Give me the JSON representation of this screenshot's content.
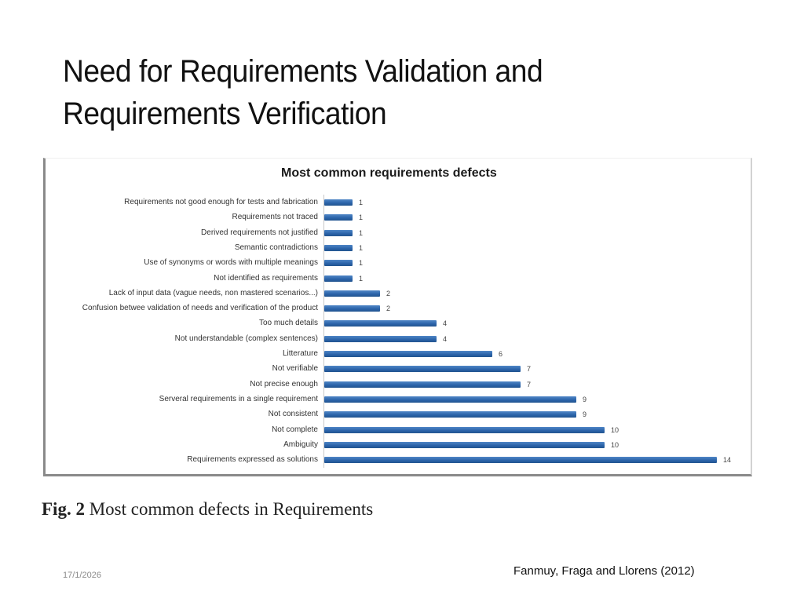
{
  "slide": {
    "title_line1": "Need for Requirements Validation and",
    "title_line2": "Requirements Verification",
    "caption_prefix": "Fig. 2",
    "caption_text": " Most common defects in Requirements",
    "date": "17/1/2026",
    "source": "Fanmuy, Fraga and Llorens  (2012)"
  },
  "chart_data": {
    "type": "bar",
    "orientation": "horizontal",
    "title": "Most common requirements defects",
    "xlabel": "",
    "ylabel": "",
    "grid": false,
    "legend": null,
    "xlim": [
      0,
      14
    ],
    "bar_color": "#2f67ad",
    "categories": [
      "Requirements not good enough for tests and fabrication",
      "Requirements not traced",
      "Derived requirements not justified",
      "Semantic contradictions",
      "Use of synonyms or words with multiple meanings",
      "Not identified as requirements",
      "Lack of input data (vague needs, non mastered scenarios...)",
      "Confusion betwee validation of needs and verification of the product",
      "Too much details",
      "Not understandable (complex sentences)",
      "Litterature",
      "Not verifiable",
      "Not precise enough",
      "Serveral requirements in a single requirement",
      "Not consistent",
      "Not complete",
      "Ambiguity",
      "Requirements expressed as solutions"
    ],
    "values": [
      1,
      1,
      1,
      1,
      1,
      1,
      2,
      2,
      4,
      4,
      6,
      7,
      7,
      9,
      9,
      10,
      10,
      14
    ]
  }
}
